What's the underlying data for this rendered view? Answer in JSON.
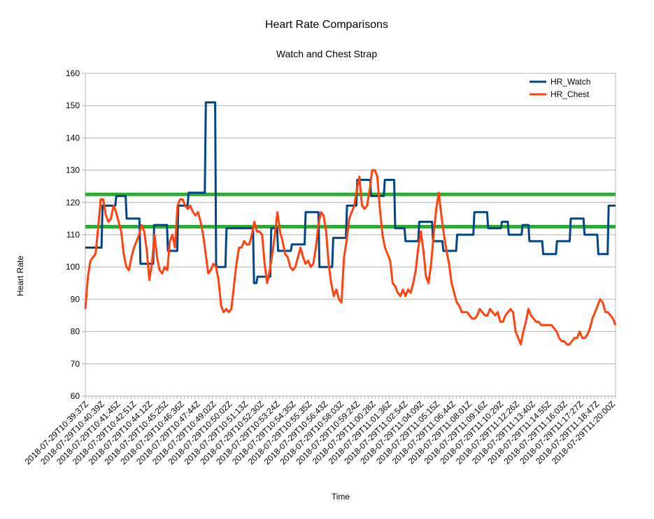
{
  "chart_data": {
    "type": "line",
    "title": "Heart Rate Comparisons",
    "subtitle": "Watch and Chest Strap",
    "xlabel": "Time",
    "ylabel": "Heart Rate",
    "ylim": [
      60,
      160
    ],
    "yticks": [
      60,
      70,
      80,
      90,
      100,
      110,
      120,
      130,
      140,
      150,
      160
    ],
    "grid": true,
    "legend_position": "top-right",
    "xticks": [
      "2018-07-29T10:39:37Z",
      "2018-07-29T10:40:39Z",
      "2018-07-29T10:41:45Z",
      "2018-07-29T10:42:51Z",
      "2018-07-29T10:44:12Z",
      "2018-07-29T10:45:25Z",
      "2018-07-29T10:46:36Z",
      "2018-07-29T10:47:44Z",
      "2018-07-29T10:49:02Z",
      "2018-07-29T10:50:02Z",
      "2018-07-29T10:51:13Z",
      "2018-07-29T10:52:30Z",
      "2018-07-29T10:53:24Z",
      "2018-07-29T10:54:35Z",
      "2018-07-29T10:55:35Z",
      "2018-07-29T10:56:43Z",
      "2018-07-29T10:58:03Z",
      "2018-07-29T10:59:24Z",
      "2018-07-29T11:00:28Z",
      "2018-07-29T11:01:36Z",
      "2018-07-29T11:02:54Z",
      "2018-07-29T11:04:09Z",
      "2018-07-29T11:05:15Z",
      "2018-07-29T11:06:44Z",
      "2018-07-29T11:08:01Z",
      "2018-07-29T11:09:16Z",
      "2018-07-29T11:10:29Z",
      "2018-07-29T11:12:26Z",
      "2018-07-29T11:13:40Z",
      "2018-07-29T11:14:55Z",
      "2018-07-29T11:16:03Z",
      "2018-07-29T11:17:27Z",
      "2018-07-29T11:18:47Z",
      "2018-07-29T11:20:00Z"
    ],
    "reference_lines": [
      {
        "y": 122.5,
        "color": "#2ea836"
      },
      {
        "y": 112.5,
        "color": "#2ea836"
      }
    ],
    "series": [
      {
        "name": "HR_Watch",
        "color": "#004586",
        "values": [
          106,
          106,
          106,
          106,
          106,
          119,
          119,
          119,
          119,
          122,
          122,
          122,
          115,
          115,
          115,
          115,
          101,
          101,
          101,
          101,
          113,
          113,
          113,
          113,
          105,
          105,
          105,
          119,
          119,
          119,
          123,
          123,
          123,
          123,
          123,
          151,
          151,
          151,
          100,
          100,
          100,
          112,
          112,
          112,
          112,
          112,
          112,
          112,
          112,
          95,
          97,
          97,
          97,
          97,
          112,
          112,
          105,
          105,
          105,
          105,
          107,
          107,
          107,
          107,
          117,
          117,
          117,
          117,
          100,
          100,
          100,
          100,
          109,
          109,
          109,
          109,
          119,
          119,
          119,
          127,
          127,
          127,
          127,
          122,
          122,
          122,
          122,
          127,
          127,
          127,
          112,
          112,
          112,
          108,
          108,
          108,
          108,
          114,
          114,
          114,
          114,
          108,
          108,
          108,
          105,
          105,
          105,
          105,
          110,
          110,
          110,
          110,
          110,
          117,
          117,
          117,
          117,
          112,
          112,
          112,
          112,
          114,
          114,
          110,
          110,
          110,
          110,
          113,
          113,
          108,
          108,
          108,
          108,
          104,
          104,
          104,
          104,
          108,
          108,
          108,
          108,
          115,
          115,
          115,
          115,
          110,
          110,
          110,
          110,
          104,
          104,
          104,
          119,
          119,
          119
        ]
      },
      {
        "name": "HR_Chest",
        "color": "#ff420e",
        "values": [
          87,
          97,
          102,
          103,
          104,
          112,
          121,
          121,
          116,
          114,
          115,
          119,
          117,
          114,
          111,
          104,
          100,
          99,
          103,
          106,
          108,
          110,
          113,
          111,
          105,
          96,
          101,
          110,
          103,
          99,
          98,
          100,
          99,
          108,
          110,
          106,
          119,
          121,
          121,
          119,
          118,
          119,
          117,
          116,
          117,
          114,
          110,
          104,
          98,
          99,
          101,
          100,
          96,
          88,
          86,
          87,
          86,
          87,
          94,
          101,
          106,
          106,
          108,
          107,
          107,
          110,
          114,
          111,
          111,
          110,
          101,
          95,
          99,
          104,
          110,
          117,
          111,
          108,
          104,
          103,
          100,
          99,
          100,
          103,
          106,
          103,
          101,
          102,
          100,
          101,
          106,
          113,
          117,
          116,
          111,
          101,
          95,
          91,
          93,
          90,
          89,
          103,
          108,
          115,
          117,
          119,
          124,
          128,
          119,
          118,
          119,
          124,
          130,
          130,
          128,
          118,
          110,
          106,
          104,
          102,
          95,
          94,
          92,
          91,
          93,
          91,
          93,
          92,
          95,
          99,
          106,
          111,
          105,
          97,
          95,
          101,
          110,
          118,
          123,
          116,
          110,
          105,
          101,
          95,
          92,
          89,
          88,
          86,
          86,
          86,
          85,
          84,
          84,
          85,
          87,
          86,
          85,
          85,
          87,
          86,
          85,
          86,
          83,
          83,
          85,
          86,
          87,
          86,
          80,
          78,
          76,
          80,
          83,
          87,
          85,
          84,
          83,
          83,
          82,
          82,
          82,
          82,
          82,
          81,
          80,
          78,
          77,
          77,
          76,
          76,
          77,
          78,
          78,
          80,
          78,
          78,
          79,
          81,
          84,
          86,
          88,
          90,
          89,
          86,
          86,
          85,
          84,
          82
        ]
      }
    ]
  }
}
